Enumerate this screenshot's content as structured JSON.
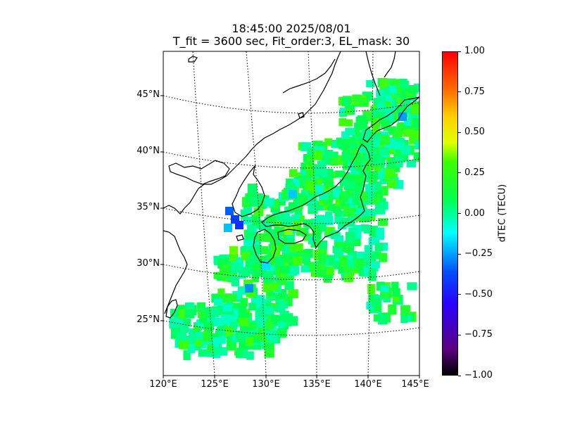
{
  "title": {
    "line1": "18:45:00 2025/08/01",
    "line2": "T_fit = 3600 sec, Fit_order:3, EL_mask: 30"
  },
  "map": {
    "lat_labels": [
      "45°N",
      "40°N",
      "35°N",
      "30°N",
      "25°N"
    ],
    "lon_labels": [
      "120°E",
      "125°E",
      "130°E",
      "135°E",
      "140°E",
      "145°E"
    ],
    "region": "Japan",
    "grid": "dotted",
    "coastline_color": "#000000"
  },
  "colorbar": {
    "label": "dTEC (TECU)",
    "ticks": [
      "1.00",
      "0.75",
      "0.50",
      "0.25",
      "0.00",
      "−0.25",
      "−0.50",
      "−0.75",
      "−1.00"
    ],
    "range": [
      -1.0,
      1.0
    ],
    "colors": [
      "#000000",
      "#2b00ff",
      "#00ffff",
      "#00ff50",
      "#3cff00",
      "#ffd000",
      "#ff0000"
    ]
  }
}
